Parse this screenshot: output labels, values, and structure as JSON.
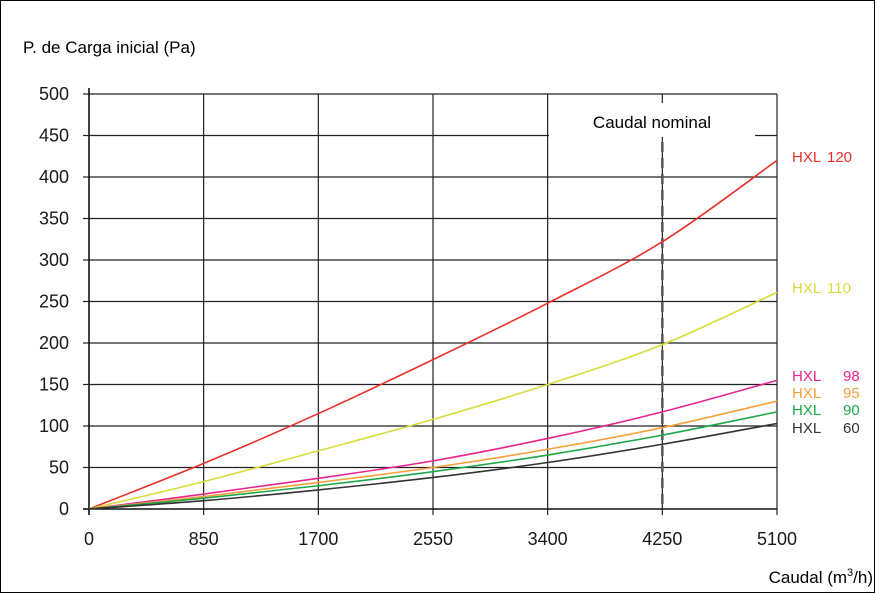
{
  "chart_data": {
    "type": "line",
    "ylabel": "P. de Carga inicial (Pa)",
    "xlabel": "Caudal (m",
    "xlabel_sup": "3",
    "xlabel_end": "/h)",
    "x_ticks": [
      0,
      850,
      1700,
      2550,
      3400,
      4250,
      5100
    ],
    "y_ticks": [
      0,
      50,
      100,
      150,
      200,
      250,
      300,
      350,
      400,
      450,
      500
    ],
    "xlim": [
      0,
      5100
    ],
    "ylim": [
      0,
      500
    ],
    "grid": true,
    "annotation": {
      "text": "Caudal nominal",
      "x": 4250
    },
    "series": [
      {
        "name": "HXL 120",
        "label_model": "HXL",
        "label_size": "120",
        "color": "#e8302a",
        "x": [
          0,
          850,
          1700,
          2550,
          3400,
          4250,
          5100
        ],
        "y": [
          0,
          55,
          115,
          180,
          248,
          322,
          420
        ]
      },
      {
        "name": "HXL 110",
        "label_model": "HXL",
        "label_size": "110",
        "color": "#d8dc3a",
        "x": [
          0,
          850,
          1700,
          2550,
          3400,
          4250,
          5100
        ],
        "y": [
          0,
          33,
          70,
          108,
          150,
          198,
          261
        ]
      },
      {
        "name": "HXL 98",
        "label_model": "HXL",
        "label_size": "98",
        "color": "#e8268f",
        "x": [
          0,
          850,
          1700,
          2550,
          3400,
          4250,
          5100
        ],
        "y": [
          0,
          18,
          37,
          58,
          85,
          117,
          155
        ]
      },
      {
        "name": "HXL 95",
        "label_model": "HXL",
        "label_size": "95",
        "color": "#f4a03a",
        "x": [
          0,
          850,
          1700,
          2550,
          3400,
          4250,
          5100
        ],
        "y": [
          0,
          15,
          32,
          50,
          72,
          98,
          130
        ]
      },
      {
        "name": "HXL 90",
        "label_model": "HXL",
        "label_size": "90",
        "color": "#1ea84a",
        "x": [
          0,
          850,
          1700,
          2550,
          3400,
          4250,
          5100
        ],
        "y": [
          0,
          13,
          28,
          45,
          65,
          89,
          117
        ]
      },
      {
        "name": "HXL 60",
        "label_model": "HXL",
        "label_size": "60",
        "color": "#333333",
        "x": [
          0,
          850,
          1700,
          2550,
          3400,
          4250,
          5100
        ],
        "y": [
          0,
          10,
          23,
          38,
          56,
          78,
          103
        ]
      }
    ]
  }
}
